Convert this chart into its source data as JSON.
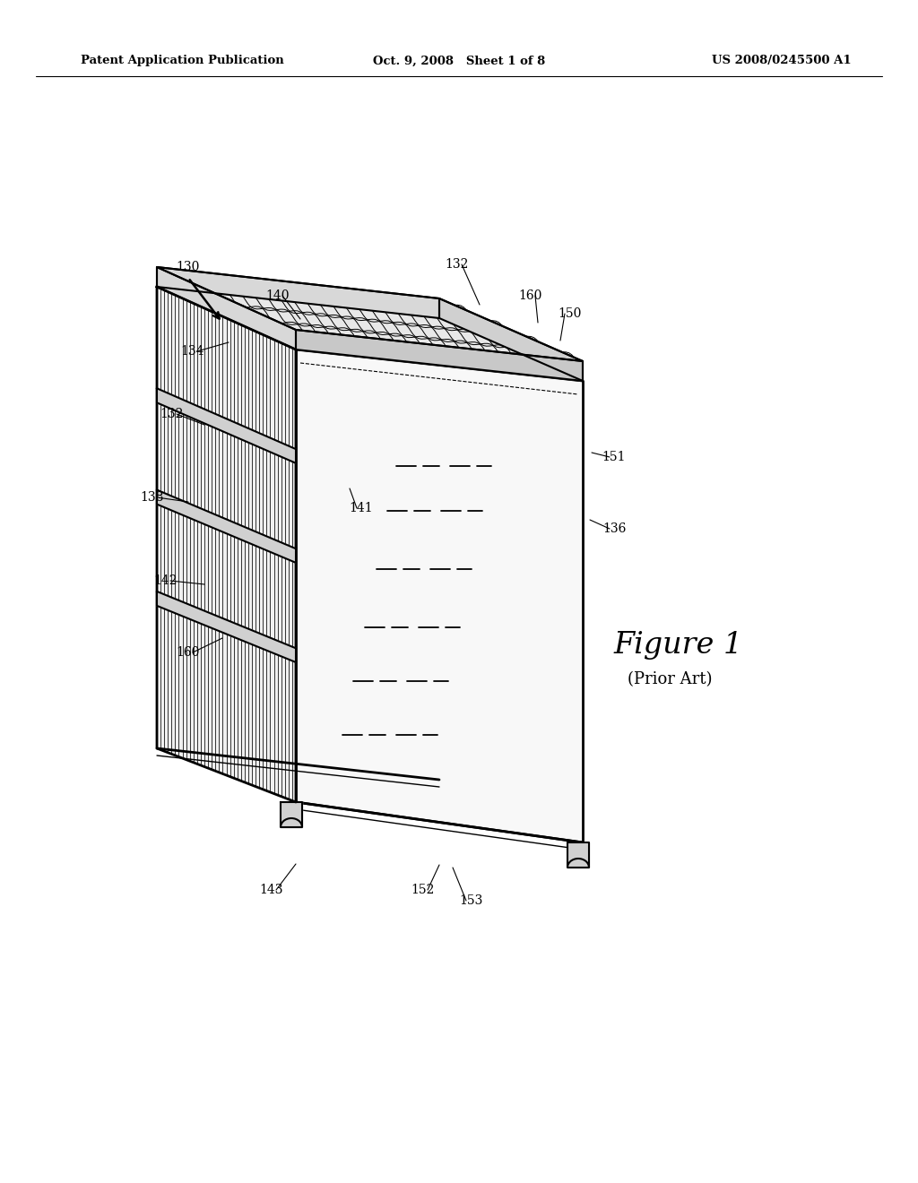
{
  "bg_color": "#ffffff",
  "line_color": "#000000",
  "header_left": "Patent Application Publication",
  "header_center": "Oct. 9, 2008   Sheet 1 of 8",
  "header_right": "US 2008/0245500 A1",
  "figure_label": "Figure 1",
  "figure_sublabel": "(Prior Art)"
}
